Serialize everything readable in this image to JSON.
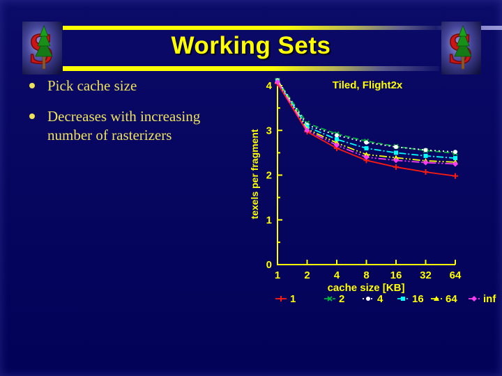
{
  "slide": {
    "title": "Working Sets",
    "bullets": [
      "Pick cache size",
      "Decreases with increasing number of rasterizers"
    ]
  },
  "icons": {
    "logo_left": "stanford-tree-logo",
    "logo_right": "stanford-tree-logo",
    "bullet": "bullet-dot"
  },
  "colors": {
    "background": "#05055e",
    "accent_yellow": "#ffff00",
    "title_text": "#ffff00",
    "bullet_text": "#ede15c"
  },
  "chart_data": {
    "type": "line",
    "title": "Tiled, Flight2x",
    "xlabel": "cache size [KB]",
    "ylabel": "texels per fragment",
    "x_scale": "log2",
    "x": [
      1,
      2,
      4,
      8,
      16,
      32,
      64
    ],
    "x_ticks": [
      1,
      2,
      4,
      8,
      16,
      32,
      64
    ],
    "y_ticks": [
      0,
      1,
      2,
      3,
      4
    ],
    "y_minor_step": 0.5,
    "ylim": [
      0,
      4.15
    ],
    "grid": false,
    "legend_position": "bottom",
    "axis_color": "#ffff00",
    "series": [
      {
        "name": "1",
        "color": "#ff1a10",
        "dash": "solid",
        "marker": "plus",
        "values": [
          4.05,
          2.97,
          2.6,
          2.33,
          2.18,
          2.07,
          1.98
        ]
      },
      {
        "name": "2",
        "color": "#00b43c",
        "dash": "dashed",
        "marker": "x",
        "values": [
          4.12,
          3.16,
          2.92,
          2.76,
          2.64,
          2.55,
          2.49
        ]
      },
      {
        "name": "4",
        "color": "#ffffff",
        "dash": "dotted",
        "marker": "circle",
        "values": [
          4.12,
          3.12,
          2.89,
          2.73,
          2.63,
          2.56,
          2.52
        ]
      },
      {
        "name": "16",
        "color": "#00ffff",
        "dash": "dashdot",
        "marker": "square",
        "values": [
          4.1,
          3.08,
          2.8,
          2.6,
          2.5,
          2.43,
          2.38
        ]
      },
      {
        "name": "64",
        "color": "#ffff00",
        "dash": "dashdotdot",
        "marker": "triangle",
        "values": [
          4.1,
          3.03,
          2.72,
          2.46,
          2.39,
          2.32,
          2.29
        ]
      },
      {
        "name": "inf",
        "color": "#ff3af0",
        "dash": "dashdotdot",
        "marker": "diamond",
        "values": [
          4.08,
          3.0,
          2.67,
          2.4,
          2.33,
          2.28,
          2.25
        ]
      }
    ]
  }
}
